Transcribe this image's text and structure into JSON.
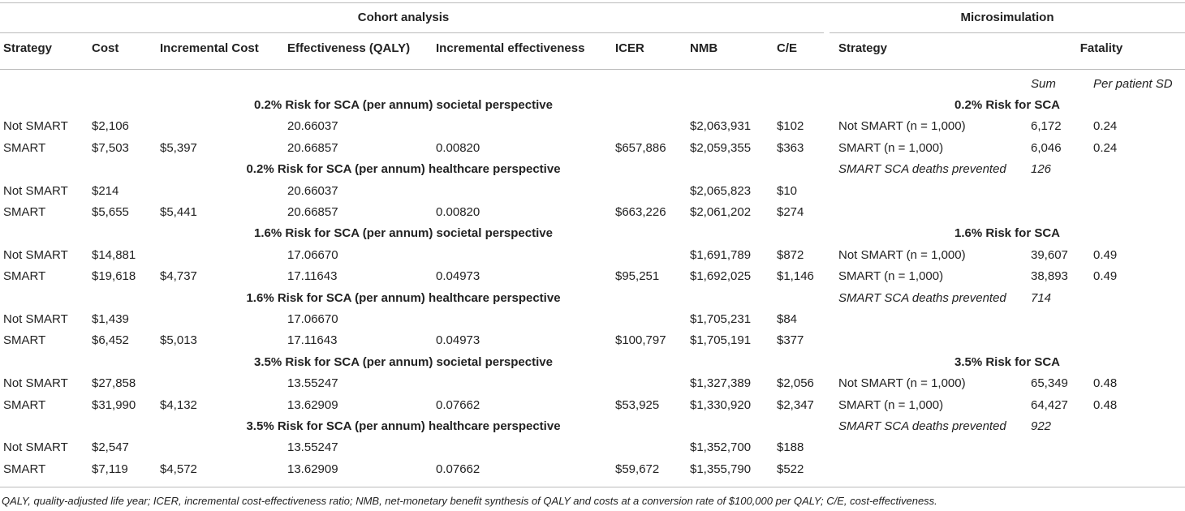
{
  "table": {
    "group_headers": [
      "Cohort analysis",
      "Microsimulation"
    ],
    "columns": [
      "Strategy",
      "Cost",
      "Incremental Cost",
      "Effectiveness (QALY)",
      "Incremental effectiveness",
      "ICER",
      "NMB",
      "C/E",
      "Strategy",
      "Fatality"
    ],
    "subheaders": [
      "Sum",
      "Per patient SD"
    ],
    "cohort_rows": [
      {
        "section": "0.2% Risk for SCA (per annum) societal perspective"
      },
      {
        "cells": [
          "Not SMART",
          "$2,106",
          null,
          "20.66037",
          null,
          null,
          "$2,063,931",
          "$102"
        ]
      },
      {
        "cells": [
          "SMART",
          "$7,503",
          "$5,397",
          "20.66857",
          "0.00820",
          "$657,886",
          "$2,059,355",
          "$363"
        ]
      },
      {
        "section": "0.2% Risk for SCA (per annum) healthcare perspective"
      },
      {
        "cells": [
          "Not SMART",
          "$214",
          null,
          "20.66037",
          null,
          null,
          "$2,065,823",
          "$10"
        ]
      },
      {
        "cells": [
          "SMART",
          "$5,655",
          "$5,441",
          "20.66857",
          "0.00820",
          "$663,226",
          "$2,061,202",
          "$274"
        ]
      },
      {
        "section": "1.6% Risk for SCA (per annum) societal perspective"
      },
      {
        "cells": [
          "Not SMART",
          "$14,881",
          null,
          "17.06670",
          null,
          null,
          "$1,691,789",
          "$872"
        ]
      },
      {
        "cells": [
          "SMART",
          "$19,618",
          "$4,737",
          "17.11643",
          "0.04973",
          "$95,251",
          "$1,692,025",
          "$1,146"
        ]
      },
      {
        "section": "1.6% Risk for SCA (per annum) healthcare perspective"
      },
      {
        "cells": [
          "Not SMART",
          "$1,439",
          null,
          "17.06670",
          null,
          null,
          "$1,705,231",
          "$84"
        ]
      },
      {
        "cells": [
          "SMART",
          "$6,452",
          "$5,013",
          "17.11643",
          "0.04973",
          "$100,797",
          "$1,705,191",
          "$377"
        ]
      },
      {
        "section": "3.5% Risk for SCA (per annum) societal perspective"
      },
      {
        "cells": [
          "Not SMART",
          "$27,858",
          null,
          "13.55247",
          null,
          null,
          "$1,327,389",
          "$2,056"
        ]
      },
      {
        "cells": [
          "SMART",
          "$31,990",
          "$4,132",
          "13.62909",
          "0.07662",
          "$53,925",
          "$1,330,920",
          "$2,347"
        ]
      },
      {
        "section": "3.5% Risk for SCA (per annum) healthcare perspective"
      },
      {
        "cells": [
          "Not SMART",
          "$2,547",
          null,
          "13.55247",
          null,
          null,
          "$1,352,700",
          "$188"
        ]
      },
      {
        "cells": [
          "SMART",
          "$7,119",
          "$4,572",
          "13.62909",
          "0.07662",
          "$59,672",
          "$1,355,790",
          "$522"
        ]
      }
    ],
    "micro_rows": [
      {
        "section": "0.2% Risk for SCA"
      },
      {
        "cells": [
          "Not SMART (n = 1,000)",
          "6,172",
          "0.24"
        ]
      },
      {
        "cells": [
          "SMART (n = 1,000)",
          "6,046",
          "0.24"
        ]
      },
      {
        "note": "SMART SCA deaths prevented",
        "value": "126"
      },
      null,
      null,
      {
        "section": "1.6% Risk for SCA"
      },
      {
        "cells": [
          "Not SMART (n = 1,000)",
          "39,607",
          "0.49"
        ]
      },
      {
        "cells": [
          "SMART (n = 1,000)",
          "38,893",
          "0.49"
        ]
      },
      {
        "note": "SMART SCA deaths prevented",
        "value": "714"
      },
      null,
      null,
      {
        "section": "3.5% Risk for SCA"
      },
      {
        "cells": [
          "Not SMART (n = 1,000)",
          "65,349",
          "0.48"
        ]
      },
      {
        "cells": [
          "SMART (n = 1,000)",
          "64,427",
          "0.48"
        ]
      },
      {
        "note": "SMART SCA deaths prevented",
        "value": "922"
      },
      null,
      null
    ]
  },
  "footnote": "QALY, quality-adjusted life year; ICER, incremental cost-effectiveness ratio; NMB, net-monetary benefit synthesis of QALY and costs at a conversion rate of $100,000 per QALY; C/E, cost-effectiveness."
}
